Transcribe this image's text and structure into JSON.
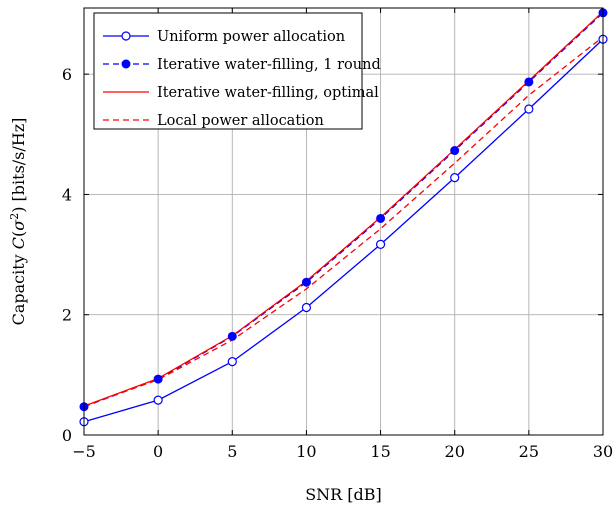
{
  "chart_data": {
    "type": "line",
    "xlabel": "SNR [dB]",
    "ylabel": "Capacity C(σ²) [bits/s/Hz]",
    "ylabel_parts": {
      "pre": "Capacity ",
      "C": "C",
      "open": "(",
      "sigma": "σ",
      "sup": "2",
      "close": ")",
      "unit": " [bits/s/Hz]"
    },
    "xlim": [
      -5,
      30
    ],
    "ylim": [
      0,
      7.1
    ],
    "grid": true,
    "legend_position": "top-left",
    "x_ticks": [
      -5,
      0,
      5,
      10,
      15,
      20,
      25,
      30
    ],
    "x_tick_labels": [
      "−5",
      "0",
      "5",
      "10",
      "15",
      "20",
      "25",
      "30"
    ],
    "y_ticks": [
      0,
      2,
      4,
      6
    ],
    "y_tick_labels": [
      "0",
      "2",
      "4",
      "6"
    ],
    "x": [
      -5,
      0,
      5,
      10,
      15,
      20,
      25,
      30
    ],
    "series": [
      {
        "name": "Uniform power allocation",
        "color": "#0000ff",
        "line": "solid",
        "marker": "open-circle",
        "values": [
          0.22,
          0.58,
          1.22,
          2.12,
          3.17,
          4.28,
          5.42,
          6.58
        ]
      },
      {
        "name": "Iterative water-filling, 1 round",
        "color": "#0000ff",
        "line": "dashed",
        "marker": "filled-circle",
        "values": [
          0.47,
          0.93,
          1.64,
          2.54,
          3.6,
          4.73,
          5.87,
          7.02
        ]
      },
      {
        "name": "Iterative water-filling, optimal",
        "color": "#ff0000",
        "line": "solid",
        "marker": "none",
        "values": [
          0.48,
          0.94,
          1.65,
          2.56,
          3.62,
          4.75,
          5.89,
          7.04
        ]
      },
      {
        "name": "Local power allocation",
        "color": "#ff0000",
        "line": "dashed",
        "marker": "none",
        "values": [
          0.48,
          0.92,
          1.58,
          2.43,
          3.43,
          4.52,
          5.65,
          6.62
        ]
      }
    ]
  }
}
